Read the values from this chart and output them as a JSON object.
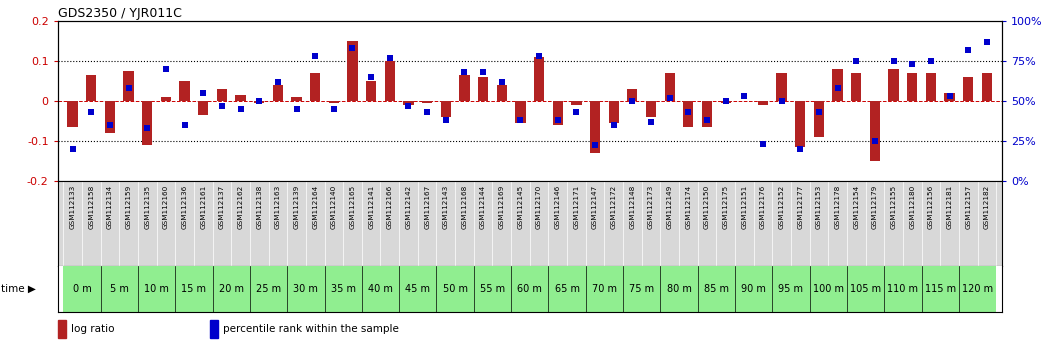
{
  "title": "GDS2350 / YJR011C",
  "gsm_labels": [
    "GSM112133",
    "GSM112158",
    "GSM112134",
    "GSM112159",
    "GSM112135",
    "GSM112160",
    "GSM112136",
    "GSM112161",
    "GSM112137",
    "GSM112162",
    "GSM112138",
    "GSM112163",
    "GSM112139",
    "GSM112164",
    "GSM112140",
    "GSM112165",
    "GSM112141",
    "GSM112166",
    "GSM112142",
    "GSM112167",
    "GSM112143",
    "GSM112168",
    "GSM112144",
    "GSM112169",
    "GSM112145",
    "GSM112170",
    "GSM112146",
    "GSM112171",
    "GSM112147",
    "GSM112172",
    "GSM112148",
    "GSM112173",
    "GSM112149",
    "GSM112174",
    "GSM112150",
    "GSM112175",
    "GSM112151",
    "GSM112176",
    "GSM112152",
    "GSM112177",
    "GSM112153",
    "GSM112178",
    "GSM112154",
    "GSM112179",
    "GSM112155",
    "GSM112180",
    "GSM112156",
    "GSM112181",
    "GSM112157",
    "GSM112182"
  ],
  "time_labels": [
    "0 m",
    "5 m",
    "10 m",
    "15 m",
    "20 m",
    "25 m",
    "30 m",
    "35 m",
    "40 m",
    "45 m",
    "50 m",
    "55 m",
    "60 m",
    "65 m",
    "70 m",
    "75 m",
    "80 m",
    "85 m",
    "90 m",
    "95 m",
    "100 m",
    "105 m",
    "110 m",
    "115 m",
    "120 m"
  ],
  "log_ratio": [
    -0.065,
    0.065,
    -0.08,
    0.075,
    -0.11,
    0.01,
    0.05,
    -0.035,
    0.03,
    0.015,
    -0.005,
    0.04,
    0.01,
    0.07,
    -0.005,
    0.15,
    0.05,
    0.1,
    -0.01,
    -0.005,
    -0.04,
    0.065,
    0.06,
    0.04,
    -0.055,
    0.11,
    -0.06,
    -0.01,
    -0.13,
    -0.055,
    0.03,
    -0.04,
    0.07,
    -0.065,
    -0.065,
    -0.005,
    0.0,
    -0.01,
    0.07,
    -0.115,
    -0.09,
    0.08,
    0.07,
    -0.15,
    0.08,
    0.07,
    0.07,
    0.02,
    0.06,
    0.07
  ],
  "percentile_rank": [
    20,
    43,
    35,
    58,
    33,
    70,
    35,
    55,
    47,
    45,
    50,
    62,
    45,
    78,
    45,
    83,
    65,
    77,
    47,
    43,
    38,
    68,
    68,
    62,
    38,
    78,
    38,
    43,
    22,
    35,
    50,
    37,
    52,
    43,
    38,
    50,
    53,
    23,
    50,
    20,
    43,
    58,
    75,
    25,
    75,
    73,
    75,
    53,
    82,
    87
  ],
  "bar_color": "#b22222",
  "square_color": "#0000cc",
  "bg_color": "#ffffff",
  "zero_line_color": "#cc0000",
  "gsm_bg_color": "#d8d8d8",
  "time_bg_color": "#90ee90",
  "time_bg_dark": "#50c850",
  "ylim_left": [
    -0.2,
    0.2
  ],
  "ylim_right": [
    0,
    100
  ],
  "yticks_left": [
    -0.2,
    -0.1,
    0.0,
    0.1,
    0.2
  ],
  "yticks_right": [
    0,
    25,
    50,
    75,
    100
  ],
  "ytick_labels_left": [
    "-0.2",
    "-0.1",
    "0",
    "0.1",
    "0.2"
  ],
  "ytick_labels_right": [
    "0%",
    "25%",
    "50%",
    "75%",
    "100%"
  ],
  "legend_log_ratio": "log ratio",
  "legend_percentile": "percentile rank within the sample"
}
